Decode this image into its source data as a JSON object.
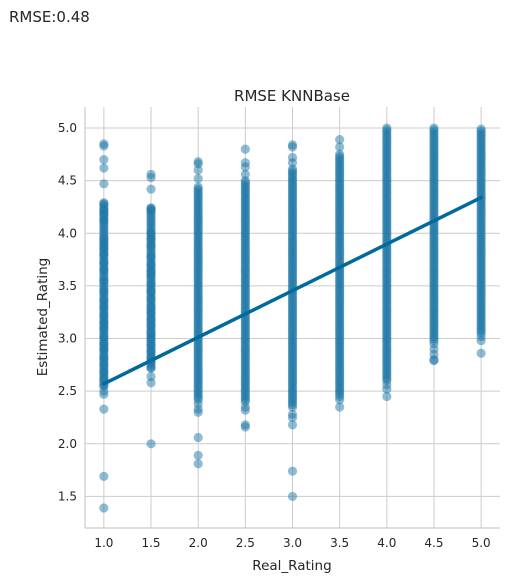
{
  "header": {
    "rmse_text": "RMSE:0.48"
  },
  "chart_data": {
    "type": "scatter",
    "title": "RMSE KNNBase",
    "xlabel": "Real_Rating",
    "ylabel": "Estimated_Rating",
    "xlim": [
      0.8,
      5.2
    ],
    "ylim": [
      1.2,
      5.2
    ],
    "x_ticks": [
      1.0,
      1.5,
      2.0,
      2.5,
      3.0,
      3.5,
      4.0,
      4.5,
      5.0
    ],
    "x_tick_labels": [
      "1.0",
      "1.5",
      "2.0",
      "2.5",
      "3.0",
      "3.5",
      "4.0",
      "4.5",
      "5.0"
    ],
    "y_ticks": [
      1.5,
      2.0,
      2.5,
      3.0,
      3.5,
      4.0,
      4.5,
      5.0
    ],
    "y_tick_labels": [
      "1.5",
      "2.0",
      "2.5",
      "3.0",
      "3.5",
      "4.0",
      "4.5",
      "5.0"
    ],
    "grid": true,
    "point_color": "#1f77a8",
    "line_color": "#006a9c",
    "series": [
      {
        "x": 1.0,
        "dense_range": [
          2.55,
          4.3
        ],
        "y": [
          4.85,
          4.83,
          4.7,
          4.62,
          4.47,
          4.28,
          4.22,
          4.18,
          4.12,
          3.95,
          3.9,
          3.86,
          3.8,
          3.72,
          3.65,
          3.55,
          3.45,
          3.36,
          3.3,
          3.22,
          3.15,
          3.1,
          3.02,
          2.95,
          2.9,
          2.82,
          2.75,
          2.68,
          2.62,
          2.55,
          2.5,
          2.47,
          2.33,
          1.69,
          1.39
        ]
      },
      {
        "x": 1.5,
        "dense_range": [
          2.72,
          4.25
        ],
        "y": [
          4.56,
          4.53,
          4.42,
          4.24,
          4.22,
          4.0,
          3.95,
          3.88,
          3.78,
          3.7,
          3.64,
          3.6,
          3.52,
          3.45,
          3.38,
          3.3,
          3.24,
          3.18,
          3.12,
          3.05,
          3.0,
          2.94,
          2.88,
          2.82,
          2.78,
          2.72,
          2.64,
          2.58,
          2.0
        ]
      },
      {
        "x": 2.0,
        "dense_range": [
          2.42,
          4.45
        ],
        "y": [
          4.68,
          4.66,
          4.6,
          4.52,
          2.38,
          2.33,
          2.3,
          2.06,
          1.89,
          1.81
        ]
      },
      {
        "x": 2.5,
        "dense_range": [
          2.4,
          4.5
        ],
        "y": [
          4.8,
          4.67,
          4.63,
          4.56,
          2.35,
          2.32,
          2.18,
          2.16
        ]
      },
      {
        "x": 3.0,
        "dense_range": [
          2.35,
          4.62
        ],
        "y": [
          4.84,
          4.82,
          4.72,
          4.67,
          2.28,
          2.25,
          2.18,
          1.74,
          1.5
        ]
      },
      {
        "x": 3.5,
        "dense_range": [
          2.45,
          4.75
        ],
        "y": [
          4.89,
          4.82,
          2.42,
          2.35
        ]
      },
      {
        "x": 4.0,
        "dense_range": [
          2.6,
          4.96
        ],
        "y": [
          5.0,
          4.98,
          2.56,
          2.52,
          2.45
        ]
      },
      {
        "x": 4.5,
        "dense_range": [
          2.98,
          5.0
        ],
        "y": [
          2.95,
          2.9,
          2.85,
          2.8,
          2.79
        ]
      },
      {
        "x": 5.0,
        "dense_range": [
          3.05,
          5.0
        ],
        "y": [
          3.02,
          2.98,
          2.86
        ]
      }
    ],
    "regression_line": {
      "x": [
        1.0,
        5.0
      ],
      "y": [
        2.57,
        4.34
      ]
    }
  }
}
